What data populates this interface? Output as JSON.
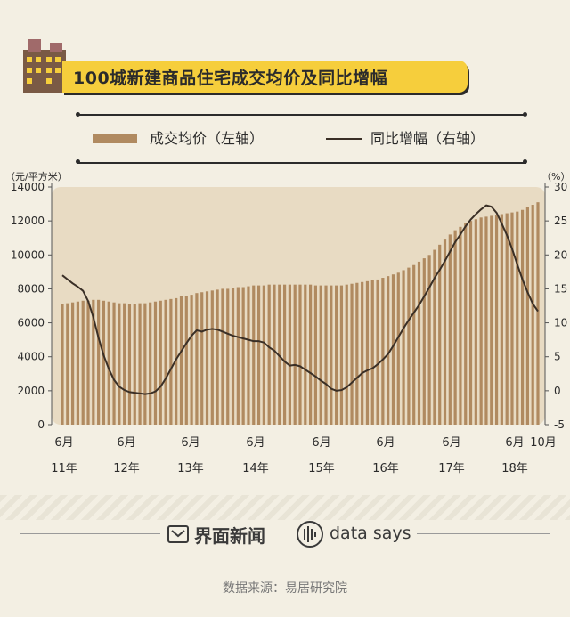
{
  "header": {
    "title": "100城新建商品住宅成交均价及同比增幅"
  },
  "legend": {
    "bar_label": "成交均价（左轴）",
    "line_label": "同比增幅（右轴）"
  },
  "axes": {
    "left_unit": "（元/平方米）",
    "right_unit": "（%）"
  },
  "chart_data": {
    "type": "bar",
    "title": "100城新建商品住宅成交均价及同比增幅",
    "left_ylim": [
      0,
      14000
    ],
    "right_ylim": [
      -5,
      30
    ],
    "left_ticks": [
      "14000",
      "12000",
      "10000",
      "8000",
      "6000",
      "4000",
      "2000",
      "0"
    ],
    "right_ticks": [
      "30",
      "25",
      "20",
      "15",
      "10",
      "5",
      "0",
      "-5"
    ],
    "x_tick_labels": [
      {
        "month": "6月",
        "year": "11年"
      },
      {
        "month": "6月",
        "year": "12年"
      },
      {
        "month": "6月",
        "year": "13年"
      },
      {
        "month": "6月",
        "year": "14年"
      },
      {
        "month": "6月",
        "year": "15年"
      },
      {
        "month": "6月",
        "year": "16年"
      },
      {
        "month": "6月",
        "year": "17年"
      },
      {
        "month": "6月",
        "year": "18年"
      },
      {
        "month": "10月",
        "year": ""
      }
    ],
    "series": [
      {
        "name": "成交均价（左轴）",
        "kind": "bar",
        "axis": "left",
        "values": [
          7100,
          7150,
          7200,
          7250,
          7300,
          7300,
          7350,
          7350,
          7300,
          7250,
          7200,
          7150,
          7150,
          7100,
          7100,
          7150,
          7150,
          7200,
          7250,
          7300,
          7350,
          7400,
          7450,
          7550,
          7600,
          7650,
          7750,
          7800,
          7850,
          7900,
          7950,
          8000,
          8000,
          8050,
          8100,
          8100,
          8150,
          8200,
          8200,
          8200,
          8250,
          8250,
          8250,
          8250,
          8250,
          8250,
          8250,
          8250,
          8250,
          8200,
          8200,
          8200,
          8200,
          8200,
          8200,
          8250,
          8300,
          8350,
          8400,
          8450,
          8500,
          8550,
          8650,
          8750,
          8850,
          8950,
          9100,
          9250,
          9400,
          9600,
          9800,
          10000,
          10300,
          10600,
          10900,
          11200,
          11450,
          11650,
          11850,
          12000,
          12100,
          12200,
          12250,
          12300,
          12350,
          12400,
          12450,
          12500,
          12550,
          12650,
          12800,
          12950,
          13100
        ]
      },
      {
        "name": "同比增幅（右轴）",
        "kind": "line",
        "axis": "right",
        "values": [
          17,
          16.4,
          15.8,
          15.3,
          14.7,
          13.2,
          10.8,
          7.8,
          5.2,
          3.2,
          1.6,
          0.6,
          0.1,
          -0.2,
          -0.3,
          -0.4,
          -0.5,
          -0.4,
          -0.1,
          0.6,
          1.8,
          3.2,
          4.6,
          5.8,
          7.0,
          8.1,
          8.9,
          8.7,
          9.0,
          9.1,
          9.0,
          8.7,
          8.4,
          8.1,
          7.9,
          7.7,
          7.5,
          7.3,
          7.3,
          7.1,
          6.4,
          5.9,
          5.1,
          4.3,
          3.7,
          3.8,
          3.6,
          3.1,
          2.6,
          2.1,
          1.5,
          1.0,
          0.3,
          0.0,
          0.1,
          0.5,
          1.2,
          1.9,
          2.6,
          3.0,
          3.3,
          3.9,
          4.6,
          5.4,
          6.6,
          7.9,
          9.2,
          10.4,
          11.5,
          12.6,
          13.9,
          15.2,
          16.6,
          17.8,
          19.1,
          20.5,
          21.9,
          23.0,
          24.2,
          25.2,
          26.0,
          26.7,
          27.3,
          27.1,
          26.2,
          24.6,
          22.9,
          20.9,
          18.6,
          16.4,
          14.5,
          12.8,
          11.7
        ]
      }
    ],
    "colors": {
      "bar": "#b08a60",
      "line": "#3a2f26",
      "plot_bg": "#e8dbc3",
      "title_bg": "#f6ce3c"
    }
  },
  "footer": {
    "brand_cn": "界面新闻",
    "brand_en": "data says",
    "source": "数据来源：易居研究院"
  }
}
